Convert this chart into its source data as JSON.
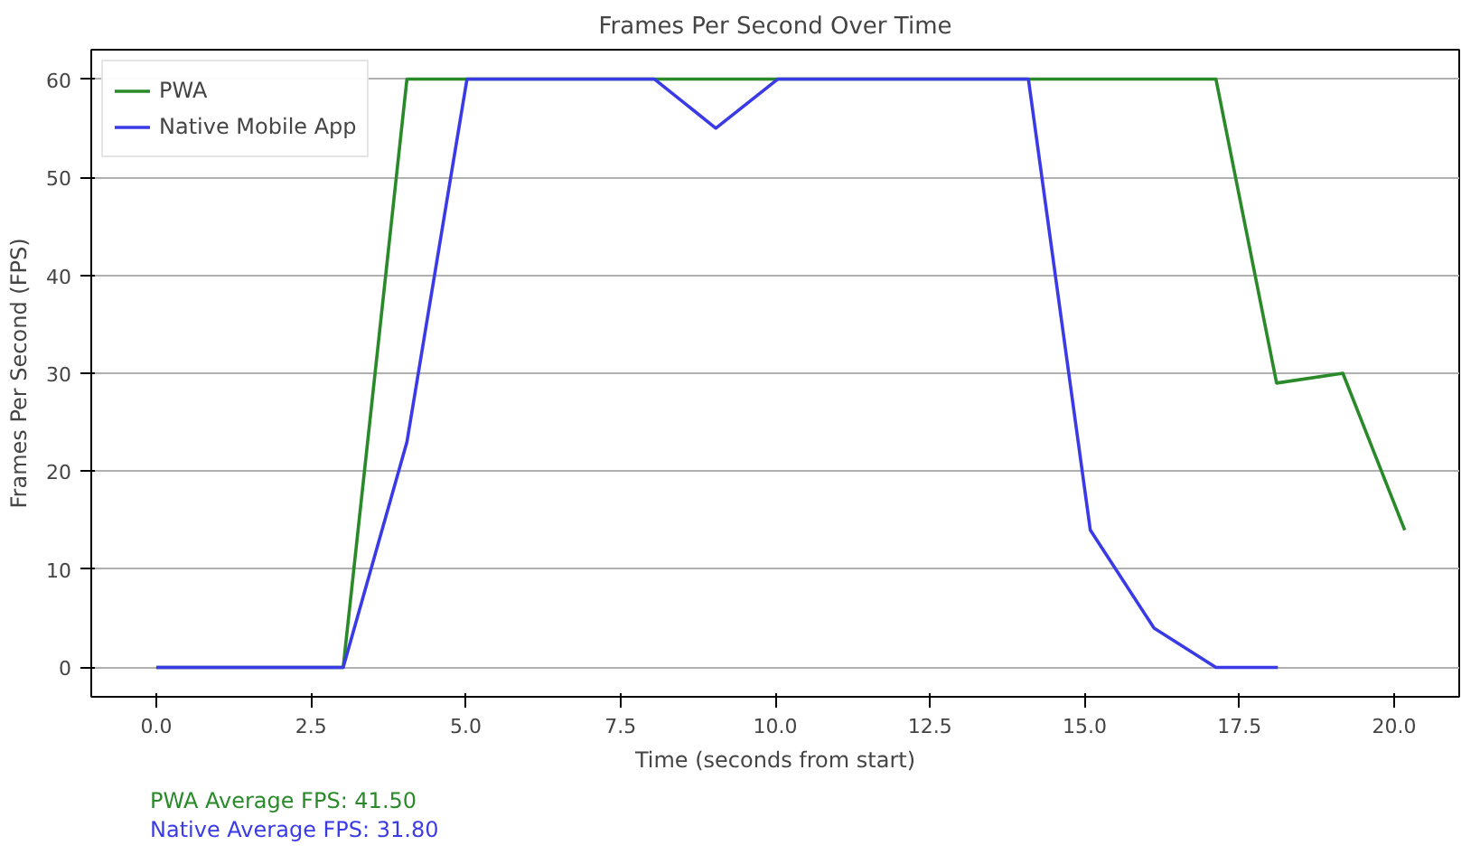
{
  "chart_data": {
    "type": "line",
    "title": "Frames Per Second Over Time",
    "xlabel": "Time (seconds from start)",
    "ylabel": "Frames Per Second (FPS)",
    "series": [
      {
        "name": "PWA",
        "color": "#2a8a2a",
        "x": [
          0,
          3.02,
          4.05,
          17.12,
          18.1,
          19.17,
          20.17
        ],
        "values": [
          0,
          0,
          60,
          60,
          29,
          30,
          14
        ]
      },
      {
        "name": "Native Mobile App",
        "color": "#3a3ae6",
        "x": [
          0,
          3.02,
          4.05,
          5.02,
          8.05,
          9.04,
          10.04,
          14.09,
          15.09,
          16.12,
          17.12,
          18.12
        ],
        "values": [
          0,
          0,
          23,
          60,
          60,
          55,
          60,
          60,
          14,
          4,
          0,
          0
        ]
      }
    ],
    "xlim": [
      -1.05,
      21.05
    ],
    "ylim": [
      -3,
      63
    ],
    "xticks": [
      {
        "value": 0,
        "label": "0.0"
      },
      {
        "value": 2.5,
        "label": "2.5"
      },
      {
        "value": 5,
        "label": "5.0"
      },
      {
        "value": 7.5,
        "label": "7.5"
      },
      {
        "value": 10,
        "label": "10.0"
      },
      {
        "value": 12.5,
        "label": "12.5"
      },
      {
        "value": 15,
        "label": "15.0"
      },
      {
        "value": 17.5,
        "label": "17.5"
      },
      {
        "value": 20,
        "label": "20.0"
      }
    ],
    "yticks": [
      0,
      10,
      20,
      30,
      40,
      50,
      60
    ],
    "grid": "y",
    "legend": "top left",
    "marker": "none",
    "line_style": "solid",
    "annotations": [
      "PWA Average FPS: 41.50",
      "Native Average FPS: 31.80"
    ]
  }
}
